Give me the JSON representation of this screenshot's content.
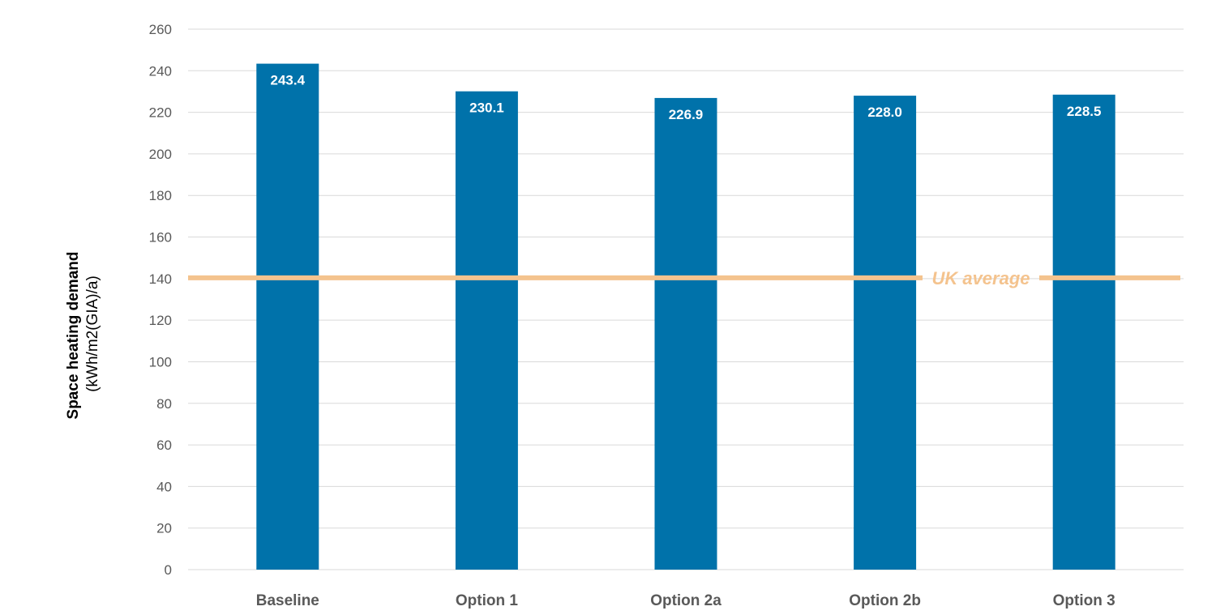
{
  "chart_data": {
    "type": "bar",
    "title": "",
    "xlabel": "",
    "ylabel": "Space heating demand",
    "ylabel_unit": "(kWh/m2(GIA)/a)",
    "ylim": [
      0,
      260
    ],
    "yticks": [
      0,
      20,
      40,
      60,
      80,
      100,
      120,
      140,
      160,
      180,
      200,
      220,
      240,
      260
    ],
    "grid": true,
    "categories": [
      "Baseline",
      "Option 1",
      "Option 2a",
      "Option 2b",
      "Option 3"
    ],
    "values": [
      243.4,
      230.1,
      226.9,
      228.0,
      228.5
    ],
    "data_labels": [
      "243.4",
      "230.1",
      "226.9",
      "228.0",
      "228.5"
    ],
    "bar_color": "#0072AA",
    "reference_line": {
      "label": "UK average",
      "value": 140,
      "color": "#F4C38E"
    }
  }
}
